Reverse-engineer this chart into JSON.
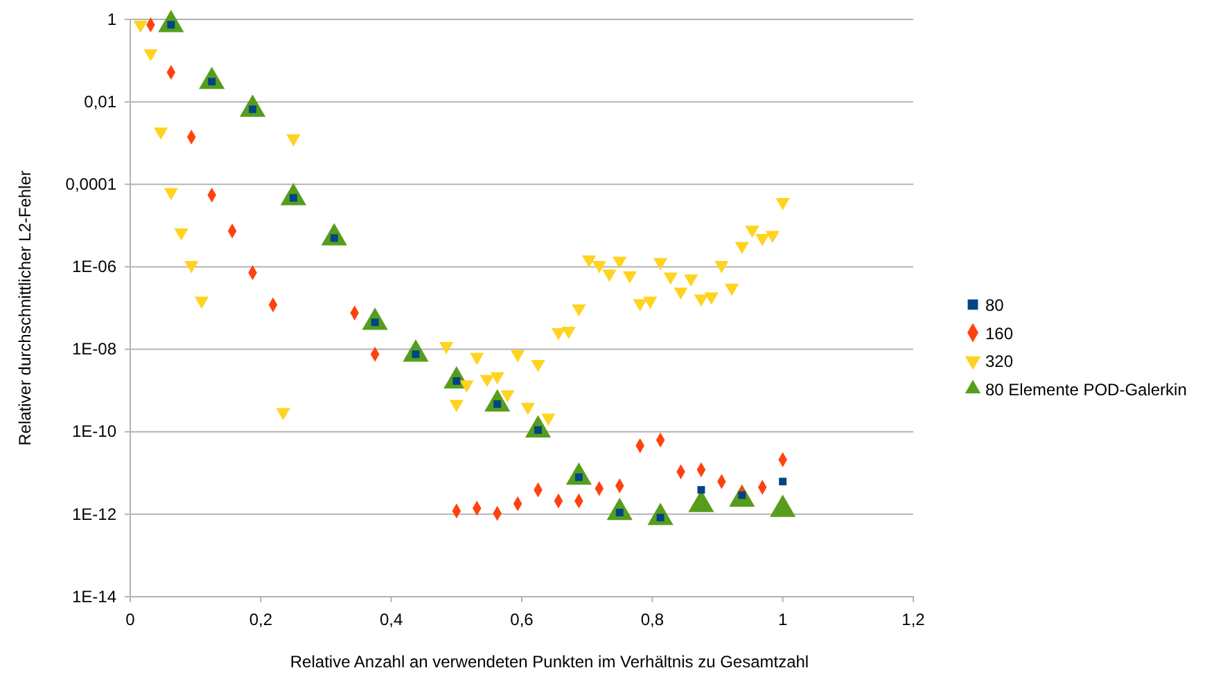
{
  "chart_data": {
    "type": "scatter",
    "xlabel": "Relative Anzahl an verwendeten Punkten im Verhältnis zu Gesamtzahl",
    "ylabel": "Relativer durchschnittlicher L2-Fehler",
    "log": "y",
    "grid": "y",
    "legend": "right",
    "xlim": [
      0,
      1.2
    ],
    "xticks": [
      0,
      {
        "value": 0.2,
        "label": "0,2"
      },
      {
        "value": 0.4,
        "label": "0,4"
      },
      {
        "value": 0.6,
        "label": "0,6"
      },
      {
        "value": 0.8,
        "label": "0,8"
      },
      1,
      {
        "value": 1.2,
        "label": "1,2"
      }
    ],
    "ylim": [
      1e-14,
      1
    ],
    "yticks": [
      {
        "value": 1e-14,
        "label": "1E-14"
      },
      {
        "value": 1e-12,
        "label": "1E-12"
      },
      {
        "value": 1e-10,
        "label": "1E-10"
      },
      {
        "value": 1e-08,
        "label": "1E-08"
      },
      {
        "value": 1e-06,
        "label": "1E-06"
      },
      {
        "value": 0.0001,
        "label": "0,0001"
      },
      {
        "value": 0.01,
        "label": "0,01"
      },
      1
    ],
    "series": [
      {
        "name": "80",
        "color": "#004586",
        "marker": "square",
        "x": [
          0.0625,
          0.125,
          0.1875,
          0.25,
          0.3125,
          0.375,
          0.4375,
          0.5,
          0.5625,
          0.625,
          0.6875,
          0.75,
          0.8125,
          0.875,
          0.9375,
          1
        ],
        "values": [
          0.74,
          0.031,
          0.0066,
          4.7e-05,
          5e-06,
          4.5e-08,
          7.6e-09,
          1.7e-09,
          4.7e-10,
          1.1e-10,
          7.9e-12,
          1.1e-12,
          8.3e-13,
          3.9e-12,
          2.9e-12,
          6.2e-12
        ]
      },
      {
        "name": "160",
        "color": "#ff420e",
        "marker": "diamond",
        "x": [
          0.03125,
          0.0625,
          0.09375,
          0.125,
          0.15625,
          0.1875,
          0.21875,
          0.34375,
          0.375,
          0.5,
          0.53125,
          0.5625,
          0.59375,
          0.625,
          0.65625,
          0.6875,
          0.71875,
          0.75,
          0.78125,
          0.8125,
          0.84375,
          0.875,
          0.90625,
          0.9375,
          0.96875,
          1
        ],
        "values": [
          0.74,
          0.052,
          0.0014,
          5.5e-05,
          7.4e-06,
          7.2e-07,
          1.2e-07,
          7.6e-08,
          7.6e-09,
          1.2e-12,
          1.4e-12,
          1.05e-12,
          1.8e-12,
          3.9e-12,
          2.1e-12,
          2.1e-12,
          4.2e-12,
          4.9e-12,
          4.6e-11,
          6.3e-11,
          1.07e-11,
          1.2e-11,
          6.2e-12,
          3.3e-12,
          4.5e-12,
          2.1e-11
        ]
      },
      {
        "name": "320",
        "color": "#ffd320",
        "marker": "triangle-down",
        "x": [
          0.015625,
          0.03125,
          0.046875,
          0.0625,
          0.078125,
          0.09375,
          0.109375,
          0.234375,
          0.25,
          0.484375,
          0.5,
          0.515625,
          0.53125,
          0.546875,
          0.5625,
          0.578125,
          0.59375,
          0.609375,
          0.625,
          0.640625,
          0.65625,
          0.671875,
          0.6875,
          0.703125,
          0.71875,
          0.734375,
          0.75,
          0.765625,
          0.78125,
          0.796875,
          0.8125,
          0.828125,
          0.84375,
          0.859375,
          0.875,
          0.890625,
          0.90625,
          0.921875,
          0.9375,
          0.953125,
          0.96875,
          0.984375,
          1
        ],
        "values": [
          0.74,
          0.15,
          0.0019,
          6.5e-05,
          6.8e-06,
          1.1e-06,
          1.5e-07,
          3e-10,
          0.0013,
          1.2e-08,
          4.7e-10,
          1.4e-09,
          6.5e-09,
          1.9e-09,
          2.2e-09,
          8.1e-10,
          7.6e-09,
          4e-10,
          4.4e-09,
          2.2e-10,
          2.6e-08,
          2.8e-08,
          9.8e-08,
          1.5e-06,
          1.1e-06,
          6.8e-07,
          1.4e-06,
          6.2e-07,
          1.3e-07,
          1.5e-07,
          1.3e-06,
          5.8e-07,
          2.5e-07,
          5.2e-07,
          1.7e-07,
          1.9e-07,
          1.1e-06,
          3.1e-07,
          3.2e-06,
          7.9e-06,
          5e-06,
          5.9e-06,
          3.7e-05
        ]
      },
      {
        "name": "80 Elemente POD-Galerkin",
        "color": "#579d1c",
        "marker": "triangle",
        "x": [
          0.0625,
          0.125,
          0.1875,
          0.25,
          0.3125,
          0.375,
          0.4375,
          0.5,
          0.5625,
          0.625,
          0.6875,
          0.75,
          0.8125,
          0.875,
          0.9375,
          1
        ],
        "values": [
          0.74,
          0.031,
          0.0066,
          4.7e-05,
          5e-06,
          4.5e-08,
          7.6e-09,
          1.7e-09,
          4.7e-10,
          1.1e-10,
          7.9e-12,
          1.1e-12,
          8.3e-13,
          1.7e-12,
          2.3e-12,
          1.3e-12
        ]
      }
    ]
  }
}
